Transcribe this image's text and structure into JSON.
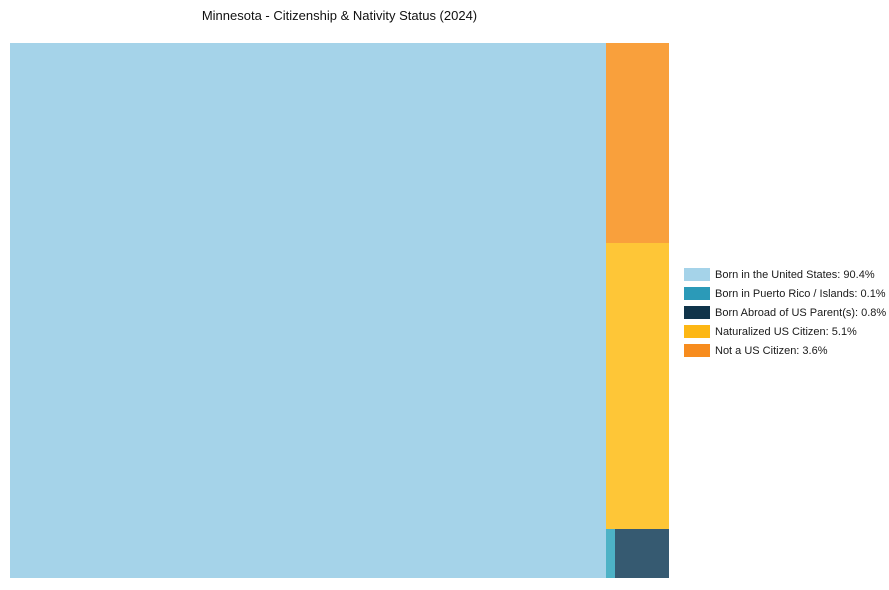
{
  "title": "Minnesota - Citizenship & Nativity Status (2024)",
  "chart_data": {
    "type": "treemap",
    "title": "Minnesota - Citizenship & Nativity Status (2024)",
    "unit": "percent",
    "total": 100,
    "legend_position": "right",
    "series": [
      {
        "label": "Born in the United States",
        "value": 90.4,
        "fill_color": "#a5d3e9",
        "legend_color": "#a5d3e9"
      },
      {
        "label": "Born in Puerto Rico / Islands",
        "value": 0.1,
        "fill_color": "#4db2c6",
        "legend_color": "#2b9ab8"
      },
      {
        "label": "Born Abroad of US Parent(s)",
        "value": 0.8,
        "fill_color": "#365a71",
        "legend_color": "#10344a"
      },
      {
        "label": "Naturalized US Citizen",
        "value": 5.1,
        "fill_color": "#fec637",
        "legend_color": "#fdb714"
      },
      {
        "label": "Not a US Citizen",
        "value": 3.6,
        "fill_color": "#f9a03c",
        "legend_color": "#f78c1e"
      }
    ]
  },
  "legend": {
    "items": [
      {
        "text": "Born in the United States: 90.4%",
        "color": "#a5d3e9"
      },
      {
        "text": "Born in Puerto Rico / Islands: 0.1%",
        "color": "#2b9ab8"
      },
      {
        "text": "Born Abroad of US Parent(s): 0.8%",
        "color": "#10344a"
      },
      {
        "text": "Naturalized US Citizen: 5.1%",
        "color": "#fdb714"
      },
      {
        "text": "Not a US Citizen: 3.6%",
        "color": "#f78c1e"
      }
    ]
  }
}
